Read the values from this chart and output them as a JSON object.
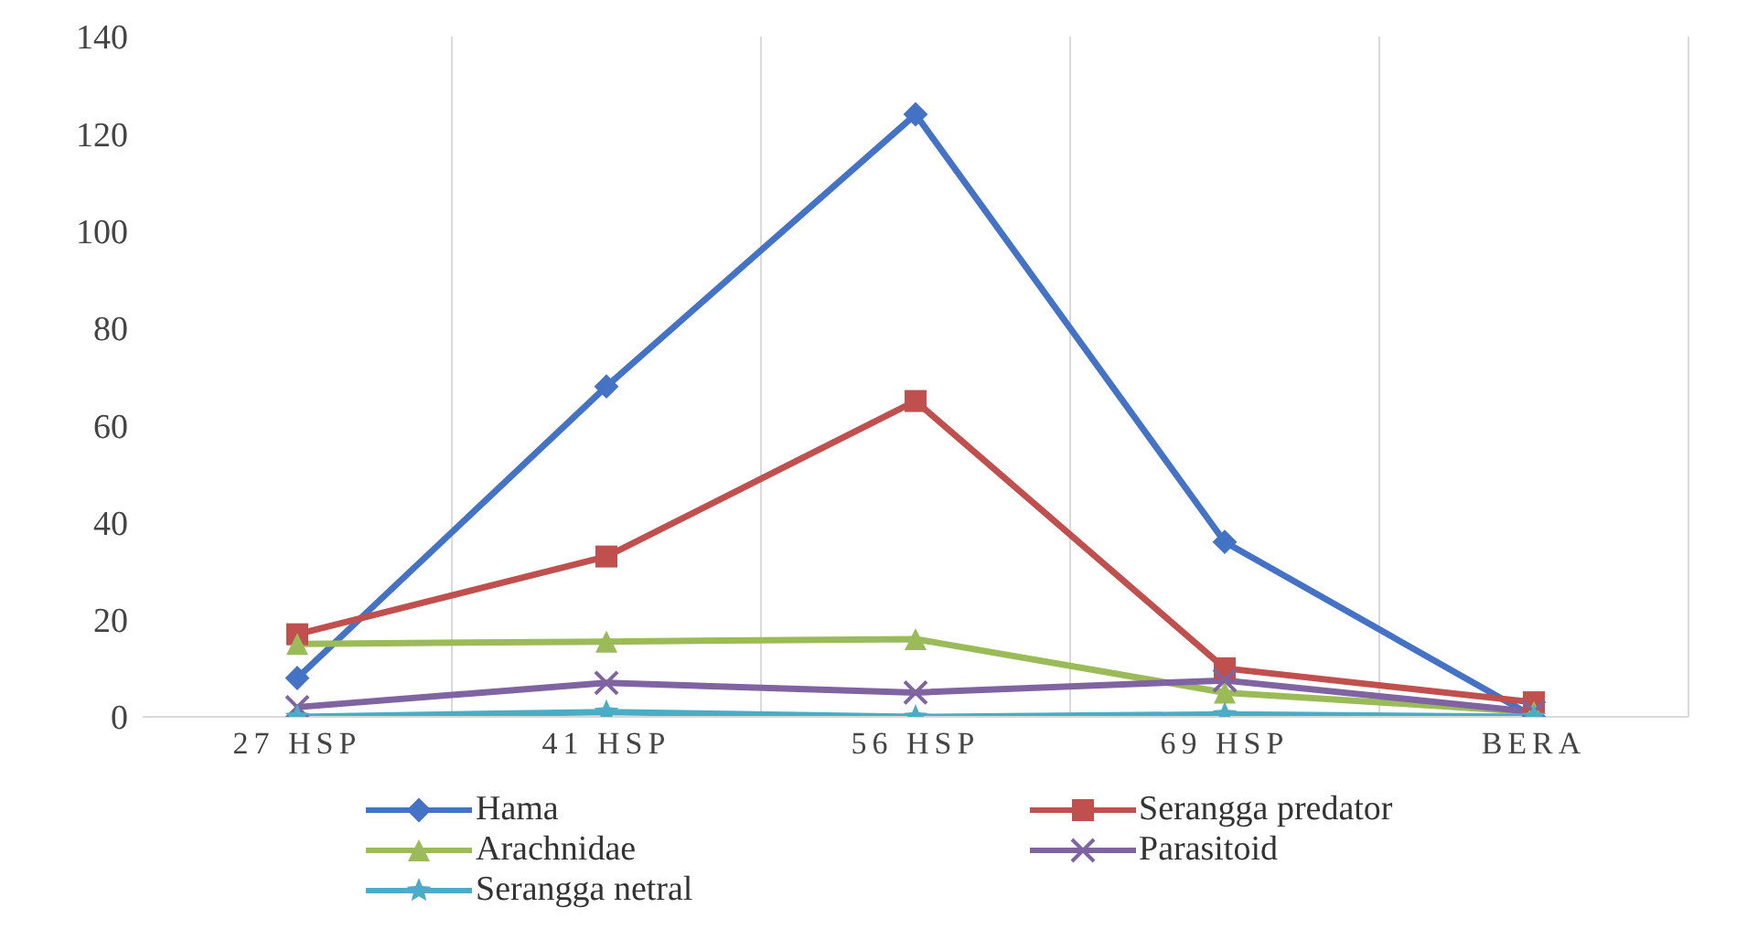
{
  "chart_data": {
    "type": "line",
    "categories": [
      "27 HSP",
      "41 HSP",
      "56 HSP",
      "69 HSP",
      "BERA"
    ],
    "series": [
      {
        "name": "Hama",
        "color": "#4472c4",
        "marker": "diamond",
        "values": [
          8,
          68,
          124,
          36,
          0
        ]
      },
      {
        "name": "Serangga predator",
        "color": "#c0504d",
        "marker": "square",
        "values": [
          17,
          33,
          65,
          10,
          3
        ]
      },
      {
        "name": "Arachnidae",
        "color": "#9bbb59",
        "marker": "triangle",
        "values": [
          15,
          15.5,
          16,
          5,
          1
        ]
      },
      {
        "name": "Parasitoid",
        "color": "#8064a2",
        "marker": "cross",
        "values": [
          2,
          7,
          5,
          7.5,
          1
        ]
      },
      {
        "name": "Serangga netral",
        "color": "#4bacc6",
        "marker": "star",
        "values": [
          0,
          1,
          0,
          0.5,
          0
        ]
      }
    ],
    "ylim": [
      0,
      140
    ],
    "yticks": [
      0,
      20,
      40,
      60,
      80,
      100,
      120,
      140
    ],
    "grid": "x",
    "legend": "bottom"
  }
}
